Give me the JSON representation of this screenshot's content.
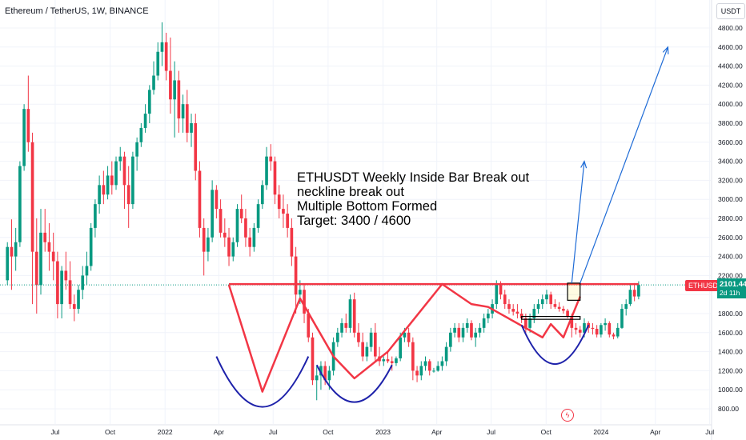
{
  "header": {
    "symbol_title": "Ethereum / TetherUS, 1W, BINANCE"
  },
  "toolbar": {
    "currency_label": "USDT"
  },
  "annotation": {
    "lines": [
      "ETHUSDT Weekly Inside Bar Break out",
      "neckline break out",
      "Multiple Bottom Formed",
      "Target: 3400 / 4600"
    ]
  },
  "price_label": {
    "symbol": "ETHUSDT",
    "price": "2101.44",
    "countdown": "2d 11h"
  },
  "colors": {
    "up": "#089981",
    "down": "#f23645",
    "neckline": "#f23645",
    "pattern": "#f23645",
    "bowl": "#1e22aa",
    "arrow": "#1e6bd6",
    "grid": "#f0f3fa",
    "axis_text": "#131722"
  },
  "chart_data": {
    "type": "candlestick",
    "title": "Ethereum / TetherUS, 1W, BINANCE",
    "y_axis": {
      "ticks": [
        800,
        1000,
        1200,
        1400,
        1600,
        1800,
        2000,
        2200,
        2400,
        2600,
        2800,
        3000,
        3200,
        3400,
        3600,
        3800,
        4000,
        4200,
        4400,
        4600,
        4800
      ],
      "tick_labels": [
        "800.00",
        "1000.00",
        "1200.00",
        "1400.00",
        "1600.00",
        "1800.00",
        "2000.00",
        "2200.00",
        "2400.00",
        "2600.00",
        "2800.00",
        "3000.00",
        "3200.00",
        "3400.00",
        "3600.00",
        "3800.00",
        "4000.00",
        "4200.00",
        "4400.00",
        "4600.00",
        "4800.00"
      ],
      "range": [
        720,
        5000
      ]
    },
    "x_axis": {
      "labels": [
        "Jul",
        "Oct",
        "2022",
        "Apr",
        "Jul",
        "Oct",
        "2023",
        "Apr",
        "Jul",
        "Oct",
        "2024",
        "Apr",
        "Jul"
      ],
      "label_dates": [
        "2021-07",
        "2021-10",
        "2022-01",
        "2022-04",
        "2022-07",
        "2022-10",
        "2023-01",
        "2023-04",
        "2023-07",
        "2023-10",
        "2024-01",
        "2024-04",
        "2024-07"
      ],
      "range": [
        "2021-04-12",
        "2024-08-10"
      ]
    },
    "candles_weekly": {
      "start": "2021-04-12",
      "interval_days": 7,
      "ohlc": [
        [
          2150,
          2550,
          2100,
          2500
        ],
        [
          2500,
          2790,
          2050,
          2400
        ],
        [
          2400,
          2700,
          2250,
          2550
        ],
        [
          2550,
          3400,
          2500,
          3350
        ],
        [
          3350,
          4000,
          3300,
          3950
        ],
        [
          3950,
          4300,
          3500,
          3600
        ],
        [
          3600,
          3700,
          1900,
          2450
        ],
        [
          2450,
          2800,
          1800,
          2100
        ],
        [
          2100,
          2900,
          2000,
          2650
        ],
        [
          2650,
          2900,
          2450,
          2550
        ],
        [
          2550,
          2750,
          2250,
          2450
        ],
        [
          2450,
          2650,
          2150,
          2350
        ],
        [
          2350,
          2450,
          1750,
          1900
        ],
        [
          1900,
          2300,
          1750,
          2250
        ],
        [
          2250,
          2450,
          2050,
          2150
        ],
        [
          2150,
          2350,
          1850,
          1900
        ],
        [
          1900,
          2000,
          1720,
          1850
        ],
        [
          1850,
          2100,
          1800,
          2050
        ],
        [
          2050,
          2300,
          1950,
          2200
        ],
        [
          2200,
          2450,
          2100,
          2300
        ],
        [
          2300,
          2750,
          2250,
          2700
        ],
        [
          2700,
          3000,
          2600,
          2950
        ],
        [
          2950,
          3250,
          2850,
          3150
        ],
        [
          3150,
          3300,
          2950,
          3050
        ],
        [
          3050,
          3350,
          3000,
          3250
        ],
        [
          3250,
          3400,
          3050,
          3150
        ],
        [
          3150,
          3450,
          3100,
          3400
        ],
        [
          3400,
          3550,
          3300,
          3450
        ],
        [
          3450,
          3500,
          2900,
          3150
        ],
        [
          3150,
          3350,
          2700,
          2950
        ],
        [
          2950,
          3500,
          2900,
          3450
        ],
        [
          3450,
          3650,
          3300,
          3600
        ],
        [
          3600,
          3800,
          3550,
          3750
        ],
        [
          3750,
          4000,
          3700,
          3900
        ],
        [
          3900,
          4200,
          3800,
          4150
        ],
        [
          4150,
          4450,
          4100,
          4300
        ],
        [
          4300,
          4650,
          4250,
          4550
        ],
        [
          4550,
          4860,
          4400,
          4650
        ],
        [
          4650,
          4750,
          4250,
          4350
        ],
        [
          4350,
          4700,
          3900,
          4050
        ],
        [
          4050,
          4450,
          3650,
          4250
        ],
        [
          4250,
          4350,
          3700,
          3850
        ],
        [
          3850,
          4100,
          3700,
          4000
        ],
        [
          4000,
          4150,
          3600,
          3700
        ],
        [
          3700,
          3900,
          3550,
          3800
        ],
        [
          3800,
          3900,
          3200,
          3300
        ],
        [
          3300,
          3400,
          2600,
          2700
        ],
        [
          2700,
          2800,
          2200,
          2450
        ],
        [
          2450,
          2700,
          2350,
          2600
        ],
        [
          2600,
          3200,
          2550,
          3100
        ],
        [
          3100,
          3150,
          2800,
          2900
        ],
        [
          2900,
          3000,
          2600,
          2650
        ],
        [
          2650,
          2800,
          2500,
          2600
        ],
        [
          2600,
          2700,
          2300,
          2400
        ],
        [
          2400,
          2600,
          2350,
          2550
        ],
        [
          2550,
          2950,
          2500,
          2900
        ],
        [
          2900,
          3050,
          2750,
          2800
        ],
        [
          2800,
          2900,
          2500,
          2600
        ],
        [
          2600,
          2700,
          2400,
          2500
        ],
        [
          2500,
          2750,
          2450,
          2700
        ],
        [
          2700,
          3000,
          2650,
          2950
        ],
        [
          2950,
          3200,
          2900,
          3150
        ],
        [
          3150,
          3550,
          3100,
          3450
        ],
        [
          3450,
          3580,
          3300,
          3400
        ],
        [
          3400,
          3450,
          2950,
          3050
        ],
        [
          3050,
          3150,
          2800,
          2900
        ],
        [
          2900,
          3050,
          2700,
          2850
        ],
        [
          2850,
          2950,
          2600,
          2700
        ],
        [
          2700,
          2800,
          2300,
          2400
        ],
        [
          2400,
          2500,
          1800,
          2000
        ],
        [
          2000,
          2150,
          1900,
          2050
        ],
        [
          2050,
          2100,
          1700,
          1800
        ],
        [
          1800,
          1850,
          1500,
          1550
        ],
        [
          1550,
          1600,
          1050,
          1100
        ],
        [
          1100,
          1250,
          890,
          1150
        ],
        [
          1150,
          1300,
          1000,
          1250
        ],
        [
          1250,
          1300,
          1050,
          1100
        ],
        [
          1100,
          1250,
          1000,
          1200
        ],
        [
          1200,
          1550,
          1150,
          1500
        ],
        [
          1500,
          1650,
          1450,
          1600
        ],
        [
          1600,
          1750,
          1550,
          1700
        ],
        [
          1700,
          1800,
          1600,
          1650
        ],
        [
          1650,
          2000,
          1600,
          1950
        ],
        [
          1950,
          2020,
          1550,
          1600
        ],
        [
          1600,
          1700,
          1450,
          1500
        ],
        [
          1500,
          1600,
          1300,
          1350
        ],
        [
          1350,
          1500,
          1300,
          1450
        ],
        [
          1450,
          1650,
          1400,
          1600
        ],
        [
          1600,
          1700,
          1300,
          1350
        ],
        [
          1350,
          1450,
          1250,
          1300
        ],
        [
          1300,
          1350,
          1250,
          1320
        ],
        [
          1320,
          1400,
          1280,
          1300
        ],
        [
          1300,
          1350,
          1200,
          1280
        ],
        [
          1280,
          1350,
          1250,
          1330
        ],
        [
          1330,
          1600,
          1300,
          1550
        ],
        [
          1550,
          1650,
          1500,
          1600
        ],
        [
          1600,
          1650,
          1450,
          1500
        ],
        [
          1500,
          1550,
          1100,
          1200
        ],
        [
          1200,
          1250,
          1080,
          1150
        ],
        [
          1150,
          1300,
          1100,
          1250
        ],
        [
          1250,
          1350,
          1200,
          1300
        ],
        [
          1300,
          1320,
          1150,
          1200
        ],
        [
          1200,
          1230,
          1180,
          1200
        ],
        [
          1200,
          1300,
          1190,
          1250
        ],
        [
          1250,
          1350,
          1200,
          1300
        ],
        [
          1300,
          1500,
          1250,
          1450
        ],
        [
          1450,
          1650,
          1400,
          1600
        ],
        [
          1600,
          1700,
          1550,
          1650
        ],
        [
          1650,
          1700,
          1500,
          1550
        ],
        [
          1550,
          1700,
          1500,
          1650
        ],
        [
          1650,
          1750,
          1600,
          1700
        ],
        [
          1700,
          1730,
          1520,
          1550
        ],
        [
          1550,
          1650,
          1450,
          1600
        ],
        [
          1600,
          1700,
          1550,
          1650
        ],
        [
          1650,
          1800,
          1600,
          1750
        ],
        [
          1750,
          1850,
          1700,
          1800
        ],
        [
          1800,
          1950,
          1750,
          1900
        ],
        [
          1900,
          2150,
          1850,
          2100
        ],
        [
          2100,
          2140,
          1950,
          2000
        ],
        [
          2000,
          2050,
          1850,
          1900
        ],
        [
          1900,
          1950,
          1800,
          1850
        ],
        [
          1850,
          1900,
          1780,
          1820
        ],
        [
          1820,
          1900,
          1750,
          1800
        ],
        [
          1800,
          1850,
          1700,
          1750
        ],
        [
          1750,
          1800,
          1600,
          1650
        ],
        [
          1650,
          1800,
          1600,
          1750
        ],
        [
          1750,
          1900,
          1700,
          1850
        ],
        [
          1850,
          1950,
          1800,
          1900
        ],
        [
          1900,
          2000,
          1850,
          1950
        ],
        [
          1950,
          2050,
          1900,
          2000
        ],
        [
          2000,
          2030,
          1850,
          1900
        ],
        [
          1900,
          1950,
          1850,
          1870
        ],
        [
          1870,
          1920,
          1820,
          1850
        ],
        [
          1850,
          1880,
          1800,
          1830
        ],
        [
          1830,
          1850,
          1750,
          1770
        ],
        [
          1770,
          1800,
          1550,
          1650
        ],
        [
          1650,
          1700,
          1580,
          1630
        ],
        [
          1630,
          1670,
          1550,
          1600
        ],
        [
          1600,
          1750,
          1550,
          1700
        ],
        [
          1700,
          1720,
          1600,
          1650
        ],
        [
          1650,
          1700,
          1580,
          1640
        ],
        [
          1640,
          1680,
          1550,
          1580
        ],
        [
          1580,
          1700,
          1550,
          1680
        ],
        [
          1680,
          1750,
          1620,
          1700
        ],
        [
          1700,
          1720,
          1550,
          1580
        ],
        [
          1580,
          1600,
          1530,
          1560
        ],
        [
          1560,
          1700,
          1540,
          1650
        ],
        [
          1650,
          1900,
          1640,
          1850
        ],
        [
          1850,
          1950,
          1780,
          1900
        ],
        [
          1900,
          2100,
          1880,
          2050
        ],
        [
          2050,
          2120,
          1930,
          1980
        ],
        [
          1980,
          2140,
          1950,
          2101.44
        ]
      ]
    },
    "drawings": {
      "neckline": {
        "price": 2110,
        "from": "2022-04-18",
        "to": "2024-03-04",
        "color": "#f23645"
      },
      "current_price_line": {
        "price": 2101.44,
        "style": "dotted",
        "color": "#089981"
      },
      "inside_bar_box": {
        "from": "2023-11-06",
        "to": "2023-11-27",
        "top": 2120,
        "bottom": 1940
      },
      "breakout_rect": {
        "from": "2023-08-21",
        "to": "2023-11-27",
        "top": 1770,
        "bottom": 1740
      },
      "pattern_path": [
        {
          "date": "2022-04-18",
          "price": 2100
        },
        {
          "date": "2022-06-13",
          "price": 980
        },
        {
          "date": "2022-08-15",
          "price": 1960
        },
        {
          "date": "2022-10-10",
          "price": 1350
        },
        {
          "date": "2022-11-14",
          "price": 1120
        },
        {
          "date": "2023-01-09",
          "price": 1400
        },
        {
          "date": "2023-04-10",
          "price": 2110
        },
        {
          "date": "2023-05-29",
          "price": 1900
        },
        {
          "date": "2023-06-26",
          "price": 1870
        },
        {
          "date": "2023-09-25",
          "price": 1550
        },
        {
          "date": "2023-10-09",
          "price": 1690
        },
        {
          "date": "2023-10-30",
          "price": 1550
        },
        {
          "date": "2023-11-27",
          "price": 1980
        }
      ],
      "bowls": [
        {
          "from": "2022-03-28",
          "to": "2022-08-29",
          "bottom_date": "2022-06-13",
          "bottom_price": 820,
          "top_price": 1350
        },
        {
          "from": "2022-09-12",
          "to": "2023-01-16",
          "bottom_date": "2022-11-14",
          "bottom_price": 870,
          "top_price": 1260
        },
        {
          "from": "2023-08-21",
          "to": "2023-12-11",
          "bottom_date": "2023-10-16",
          "bottom_price": 1270,
          "top_price": 1680
        }
      ],
      "target_arrows": [
        {
          "from_date": "2023-11-13",
          "from_price": 2120,
          "to_date": "2023-12-04",
          "to_price": 3400
        },
        {
          "from_date": "2023-11-27",
          "from_price": 2120,
          "to_date": "2024-04-22",
          "to_price": 4600
        }
      ]
    }
  }
}
